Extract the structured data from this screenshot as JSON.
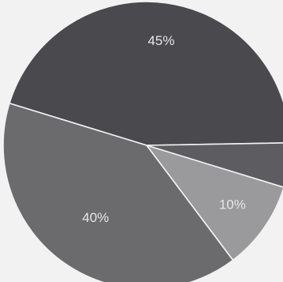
{
  "chart_data": {
    "type": "pie",
    "title": "",
    "slices": [
      {
        "label": "",
        "value": 45,
        "display": "45%",
        "color": "#4a4a4e"
      },
      {
        "label": "",
        "value": 5,
        "display": "",
        "color": "#5d5d61"
      },
      {
        "label": "",
        "value": 10,
        "display": "10%",
        "color": "#9a9a9c"
      },
      {
        "label": "",
        "value": 40,
        "display": "40%",
        "color": "#6b6b6e"
      }
    ],
    "legend": "none",
    "separator_color": "#f2f2f2"
  }
}
